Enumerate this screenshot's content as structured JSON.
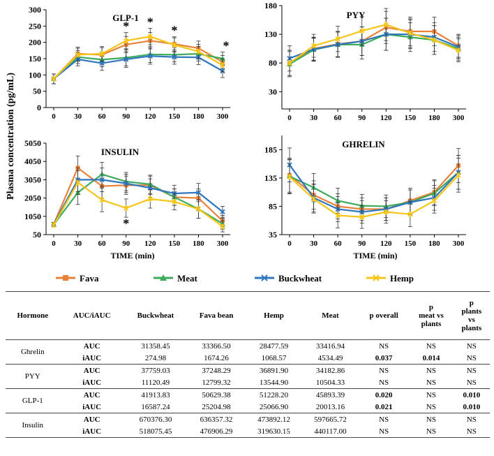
{
  "figure": {
    "y_axis_label": "Plasma concentration (pg/mL)",
    "x_axis_label": "TIME (min)",
    "colors": {
      "Fava": "#E8813A",
      "Meat": "#3DAA5C",
      "Buckwheat": "#2E77BE",
      "Hemp": "#F5C518"
    },
    "legend": [
      "Fava",
      "Meat",
      "Buckwheat",
      "Hemp"
    ]
  },
  "chart_data": [
    {
      "type": "line",
      "title": "GLP-1",
      "xlabel": "TIME (min)",
      "ylabel": "Plasma concentration (pg/mL)",
      "x": [
        "0",
        "30",
        "60",
        "90",
        "120",
        "150",
        "180",
        "300"
      ],
      "ylim": [
        0,
        300
      ],
      "yticks": [
        "0",
        "50",
        "100",
        "150",
        "200",
        "250",
        "300"
      ],
      "series": [
        {
          "name": "Fava",
          "values": [
            88,
            165,
            162,
            193,
            205,
            195,
            182,
            140
          ],
          "error": [
            15,
            20,
            22,
            25,
            25,
            22,
            22,
            20
          ]
        },
        {
          "name": "Meat",
          "values": [
            88,
            155,
            147,
            153,
            163,
            162,
            165,
            150
          ],
          "error": [
            15,
            20,
            22,
            25,
            25,
            22,
            22,
            20
          ]
        },
        {
          "name": "Buckwheat",
          "values": [
            88,
            148,
            136,
            148,
            158,
            155,
            154,
            112
          ],
          "error": [
            15,
            20,
            22,
            25,
            25,
            22,
            22,
            20
          ]
        },
        {
          "name": "Hemp",
          "values": [
            88,
            162,
            165,
            205,
            218,
            192,
            172,
            130
          ],
          "error": [
            15,
            20,
            22,
            25,
            25,
            22,
            22,
            20
          ]
        }
      ],
      "annotations": [
        {
          "x": "90",
          "text": "*"
        },
        {
          "x": "120",
          "text": "*"
        },
        {
          "x": "150",
          "text": "*"
        },
        {
          "x": "300",
          "text": "*"
        }
      ]
    },
    {
      "type": "line",
      "title": "PYY",
      "xlabel": "TIME (min)",
      "ylabel": "Plasma concentration (pg/mL)",
      "x": [
        "0",
        "30",
        "60",
        "90",
        "120",
        "150",
        "180",
        "300"
      ],
      "ylim": [
        0,
        180
      ],
      "yticks": [
        "30",
        "80",
        "130",
        "180"
      ],
      "series": [
        {
          "name": "Fava",
          "values": [
            80,
            105,
            113,
            118,
            142,
            135,
            135,
            110
          ],
          "error": [
            22,
            20,
            22,
            25,
            28,
            25,
            25,
            20
          ]
        },
        {
          "name": "Meat",
          "values": [
            78,
            103,
            112,
            112,
            130,
            125,
            120,
            105
          ],
          "error": [
            22,
            20,
            22,
            25,
            28,
            25,
            25,
            20
          ]
        },
        {
          "name": "Buckwheat",
          "values": [
            88,
            104,
            112,
            118,
            130,
            130,
            125,
            108
          ],
          "error": [
            22,
            20,
            22,
            25,
            28,
            25,
            25,
            20
          ]
        },
        {
          "name": "Hemp",
          "values": [
            80,
            110,
            122,
            136,
            147,
            132,
            120,
            102
          ],
          "error": [
            22,
            20,
            22,
            25,
            28,
            25,
            25,
            20
          ]
        }
      ],
      "annotations": []
    },
    {
      "type": "line",
      "title": "INSULIN",
      "xlabel": "TIME (min)",
      "ylabel": "Plasma concentration (pg/mL)",
      "x": [
        "0",
        "30",
        "60",
        "90",
        "120",
        "150",
        "180",
        "300"
      ],
      "ylim": [
        50,
        5050
      ],
      "yticks": [
        "50",
        "1050",
        "2050",
        "3050",
        "4050",
        "5050"
      ],
      "series": [
        {
          "name": "Fava",
          "values": [
            620,
            3700,
            2700,
            2750,
            2750,
            2100,
            2050,
            800
          ],
          "error": [
            100,
            650,
            650,
            500,
            500,
            450,
            500,
            300
          ]
        },
        {
          "name": "Meat",
          "values": [
            600,
            2350,
            3350,
            2950,
            2800,
            2100,
            1450,
            650
          ],
          "error": [
            100,
            650,
            650,
            500,
            500,
            450,
            500,
            300
          ]
        },
        {
          "name": "Buckwheat",
          "values": [
            620,
            3050,
            3050,
            2850,
            2600,
            2300,
            2350,
            1300
          ],
          "error": [
            100,
            650,
            650,
            500,
            500,
            450,
            500,
            300
          ]
        },
        {
          "name": "Hemp",
          "values": [
            580,
            2900,
            1950,
            1500,
            2000,
            1850,
            1450,
            500
          ],
          "error": [
            100,
            650,
            650,
            500,
            500,
            450,
            500,
            300
          ]
        }
      ],
      "annotations": [
        {
          "x": "90",
          "text": "*"
        }
      ]
    },
    {
      "type": "line",
      "title": "GHRELIN",
      "xlabel": "TIME (min)",
      "ylabel": "Plasma concentration (pg/mL)",
      "x": [
        "0",
        "30",
        "60",
        "90",
        "120",
        "150",
        "180",
        "300"
      ],
      "ylim": [
        35,
        210
      ],
      "yticks": [
        "35",
        "85",
        "135",
        "185"
      ],
      "series": [
        {
          "name": "Fava",
          "values": [
            140,
            105,
            85,
            80,
            80,
            95,
            110,
            157
          ],
          "error": [
            30,
            25,
            22,
            20,
            20,
            22,
            22,
            30
          ]
        },
        {
          "name": "Meat",
          "values": [
            138,
            118,
            95,
            86,
            85,
            92,
            108,
            145
          ],
          "error": [
            30,
            25,
            22,
            20,
            20,
            22,
            22,
            30
          ]
        },
        {
          "name": "Buckwheat",
          "values": [
            158,
            100,
            80,
            75,
            80,
            92,
            100,
            145
          ],
          "error": [
            30,
            25,
            22,
            20,
            20,
            22,
            22,
            30
          ]
        },
        {
          "name": "Hemp",
          "values": [
            137,
            98,
            69,
            66,
            75,
            71,
            95,
            140
          ],
          "error": [
            30,
            25,
            22,
            20,
            20,
            22,
            22,
            30
          ]
        }
      ],
      "annotations": []
    }
  ],
  "table": {
    "headers": [
      "Hormone",
      "AUC/iAUC",
      "Buckwheat",
      "Fava bean",
      "Hemp",
      "Meat",
      "p overall",
      "p\nmeat vs\nplants",
      "p\nplants\nvs\nplants"
    ],
    "groups": [
      {
        "hormone": "Ghrelin",
        "rows": [
          {
            "metric": "AUC",
            "values": [
              "31358.45",
              "33366.50",
              "28477.59",
              "33416.94",
              "NS",
              "NS",
              "NS"
            ]
          },
          {
            "metric": "iAUC",
            "values": [
              "274.98",
              "1674.26",
              "1068.57",
              "4534.49",
              "0.037",
              "0.014",
              "NS"
            ]
          }
        ]
      },
      {
        "hormone": "PYY",
        "rows": [
          {
            "metric": "AUC",
            "values": [
              "37759.03",
              "37248.29",
              "36891.90",
              "34182.86",
              "NS",
              "NS",
              "NS"
            ]
          },
          {
            "metric": "iAUC",
            "values": [
              "11120.49",
              "12799.32",
              "13544.90",
              "10504.33",
              "NS",
              "NS",
              "NS"
            ]
          }
        ]
      },
      {
        "hormone": "GLP-1",
        "rows": [
          {
            "metric": "AUC",
            "values": [
              "41913.83",
              "50629.38",
              "51228.20",
              "45893.39",
              "0.020",
              "NS",
              "0.010"
            ]
          },
          {
            "metric": "iAUC",
            "values": [
              "16587.24",
              "25204.98",
              "25066.90",
              "20013.16",
              "0.021",
              "NS",
              "0.010"
            ]
          }
        ]
      },
      {
        "hormone": "Insulin",
        "rows": [
          {
            "metric": "AUC",
            "values": [
              "670376.30",
              "636357.32",
              "473892.12",
              "597665.72",
              "NS",
              "NS",
              "NS"
            ]
          },
          {
            "metric": "iAUC",
            "values": [
              "518075.45",
              "476906.29",
              "319630.15",
              "440117.00",
              "NS",
              "NS",
              "NS"
            ]
          }
        ]
      }
    ]
  }
}
